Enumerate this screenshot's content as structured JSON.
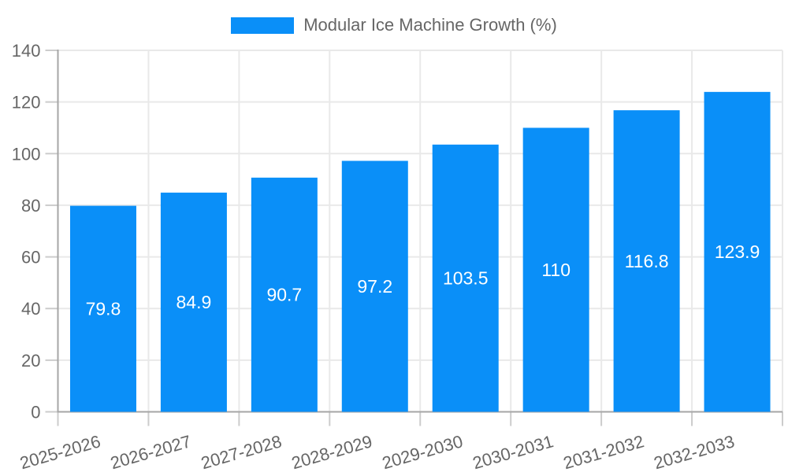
{
  "chart_data": {
    "type": "bar",
    "title": "Modular Ice Machine Growth (%)",
    "categories": [
      "2025-2026",
      "2026-2027",
      "2027-2028",
      "2028-2029",
      "2029-2030",
      "2030-2031",
      "2031-2032",
      "2032-2033"
    ],
    "values": [
      79.8,
      84.9,
      90.7,
      97.2,
      103.5,
      110,
      116.8,
      123.9
    ],
    "value_labels": [
      "79.8",
      "84.9",
      "90.7",
      "97.2",
      "103.5",
      "110",
      "116.8",
      "123.9"
    ],
    "xlabel": "",
    "ylabel": "",
    "ylim": [
      0,
      140
    ],
    "yticks": [
      0,
      20,
      40,
      60,
      80,
      100,
      120,
      140
    ],
    "grid": true,
    "legend_position": "top",
    "x_label_rotation": -16,
    "colors": {
      "bar": "#0a8ff8",
      "value_label": "#ffffff",
      "axis_text": "#666666",
      "legend_text": "#666666",
      "grid_line": "#e9e9e9",
      "tick": "#cccccc",
      "axis_border": "#a6a6a6",
      "background": "#ffffff"
    }
  }
}
